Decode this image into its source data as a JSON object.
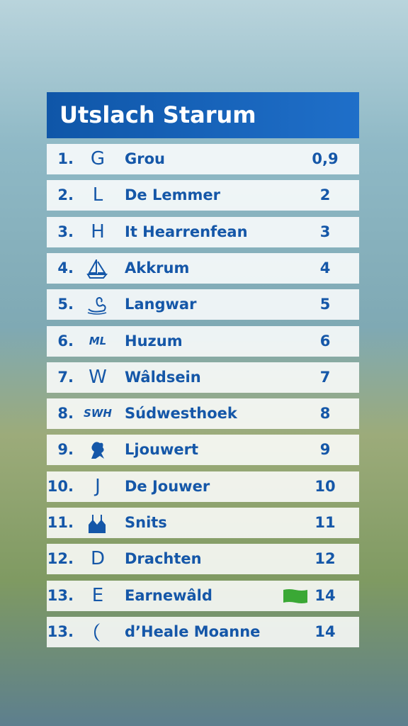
{
  "header": {
    "title": "Utslach Starum"
  },
  "table": {
    "rows": [
      {
        "rank": "1.",
        "emblem": "G",
        "name": "Grou",
        "score": "0,9"
      },
      {
        "rank": "2.",
        "emblem": "L",
        "name": "De Lemmer",
        "score": "2"
      },
      {
        "rank": "3.",
        "emblem": "H",
        "name": "It Hearrenfean",
        "score": "3"
      },
      {
        "rank": "4.",
        "icon": "ship",
        "name": "Akkrum",
        "score": "4"
      },
      {
        "rank": "5.",
        "icon": "swan",
        "name": "Langwar",
        "score": "5"
      },
      {
        "rank": "6.",
        "emblem": "ML",
        "name": "Huzum",
        "score": "6"
      },
      {
        "rank": "7.",
        "emblem": "W",
        "name": "Wâldsein",
        "score": "7"
      },
      {
        "rank": "8.",
        "emblem": "SWH",
        "name": "Súdwesthoek",
        "score": "8"
      },
      {
        "rank": "9.",
        "icon": "lion",
        "name": "Ljouwert",
        "score": "9"
      },
      {
        "rank": "10.",
        "emblem": "J",
        "name": "De Jouwer",
        "score": "10"
      },
      {
        "rank": "11.",
        "icon": "church",
        "name": "Snits",
        "score": "11"
      },
      {
        "rank": "12.",
        "emblem": "D",
        "name": "Drachten",
        "score": "12"
      },
      {
        "rank": "13.",
        "emblem": "E",
        "name": "Earnewâld",
        "score": "14",
        "flag": true
      },
      {
        "rank": "13.",
        "icon": "moon",
        "name": "d’Heale Moanne",
        "score": "14"
      }
    ]
  }
}
